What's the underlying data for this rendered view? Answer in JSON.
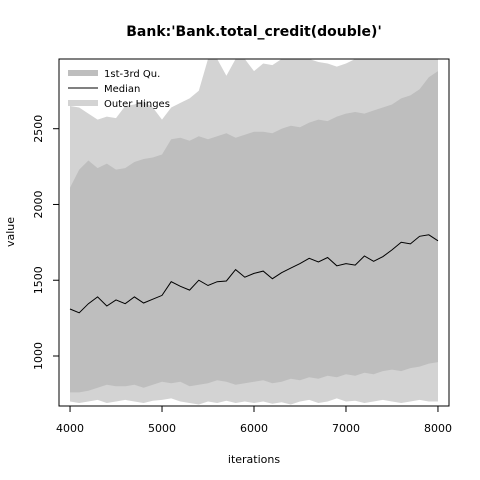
{
  "chart_data": {
    "type": "area",
    "title": "Bank:'Bank.total_credit(double)'",
    "xlabel": "iterations",
    "ylabel": "value",
    "xlim": [
      3880,
      8120
    ],
    "ylim": [
      670,
      2960
    ],
    "x_ticks": [
      4000,
      5000,
      6000,
      7000,
      8000
    ],
    "y_ticks": [
      1000,
      1500,
      2000,
      2500
    ],
    "legend_position": "top-left",
    "legend": [
      {
        "label": "1st-3rd Qu.",
        "kind": "band",
        "color": "#bebebe"
      },
      {
        "label": "Median",
        "kind": "line",
        "color": "#000000"
      },
      {
        "label": "Outer Hinges",
        "kind": "band",
        "color": "#d3d3d3"
      }
    ],
    "x": [
      4000,
      4100,
      4200,
      4300,
      4400,
      4500,
      4600,
      4700,
      4800,
      4900,
      5000,
      5100,
      5200,
      5300,
      5400,
      5500,
      5600,
      5700,
      5800,
      5900,
      6000,
      6100,
      6200,
      6300,
      6400,
      6500,
      6600,
      6700,
      6800,
      6900,
      7000,
      7100,
      7200,
      7300,
      7400,
      7500,
      7600,
      7700,
      7800,
      7900,
      8000
    ],
    "series": [
      {
        "name": "Median",
        "values": [
          1310,
          1285,
          1345,
          1390,
          1330,
          1370,
          1345,
          1390,
          1350,
          1375,
          1400,
          1490,
          1460,
          1435,
          1500,
          1465,
          1490,
          1495,
          1570,
          1520,
          1545,
          1560,
          1510,
          1550,
          1580,
          1610,
          1645,
          1620,
          1650,
          1595,
          1610,
          1600,
          1660,
          1625,
          1655,
          1700,
          1750,
          1740,
          1790,
          1800,
          1760
        ]
      },
      {
        "name": "1st Qu.",
        "values": [
          760,
          760,
          770,
          790,
          810,
          800,
          800,
          810,
          790,
          810,
          830,
          820,
          830,
          800,
          810,
          820,
          840,
          830,
          810,
          820,
          830,
          840,
          820,
          830,
          850,
          840,
          860,
          850,
          870,
          860,
          880,
          870,
          890,
          880,
          900,
          910,
          900,
          920,
          930,
          950,
          960
        ]
      },
      {
        "name": "3rd Qu.",
        "values": [
          2110,
          2230,
          2290,
          2240,
          2270,
          2230,
          2240,
          2280,
          2300,
          2310,
          2330,
          2430,
          2440,
          2420,
          2450,
          2430,
          2450,
          2470,
          2440,
          2460,
          2480,
          2480,
          2470,
          2500,
          2520,
          2510,
          2540,
          2560,
          2550,
          2580,
          2600,
          2610,
          2600,
          2620,
          2640,
          2660,
          2700,
          2720,
          2760,
          2840,
          2880
        ]
      },
      {
        "name": "Lower Hinge",
        "values": [
          700,
          690,
          700,
          710,
          690,
          700,
          710,
          700,
          690,
          705,
          710,
          720,
          700,
          690,
          680,
          700,
          690,
          705,
          690,
          700,
          690,
          700,
          685,
          695,
          680,
          700,
          710,
          690,
          700,
          720,
          700,
          705,
          690,
          700,
          710,
          700,
          690,
          700,
          710,
          700,
          700
        ]
      },
      {
        "name": "Upper Hinge",
        "values": [
          2650,
          2640,
          2600,
          2560,
          2580,
          2570,
          2650,
          2660,
          2680,
          2640,
          2560,
          2640,
          2670,
          2700,
          2750,
          2960,
          2960,
          2850,
          2960,
          2960,
          2880,
          2930,
          2920,
          2960,
          2960,
          2960,
          2960,
          2940,
          2930,
          2910,
          2930,
          2960,
          2960,
          2960,
          2960,
          2960,
          2960,
          2960,
          2960,
          2960,
          2960
        ]
      }
    ]
  }
}
